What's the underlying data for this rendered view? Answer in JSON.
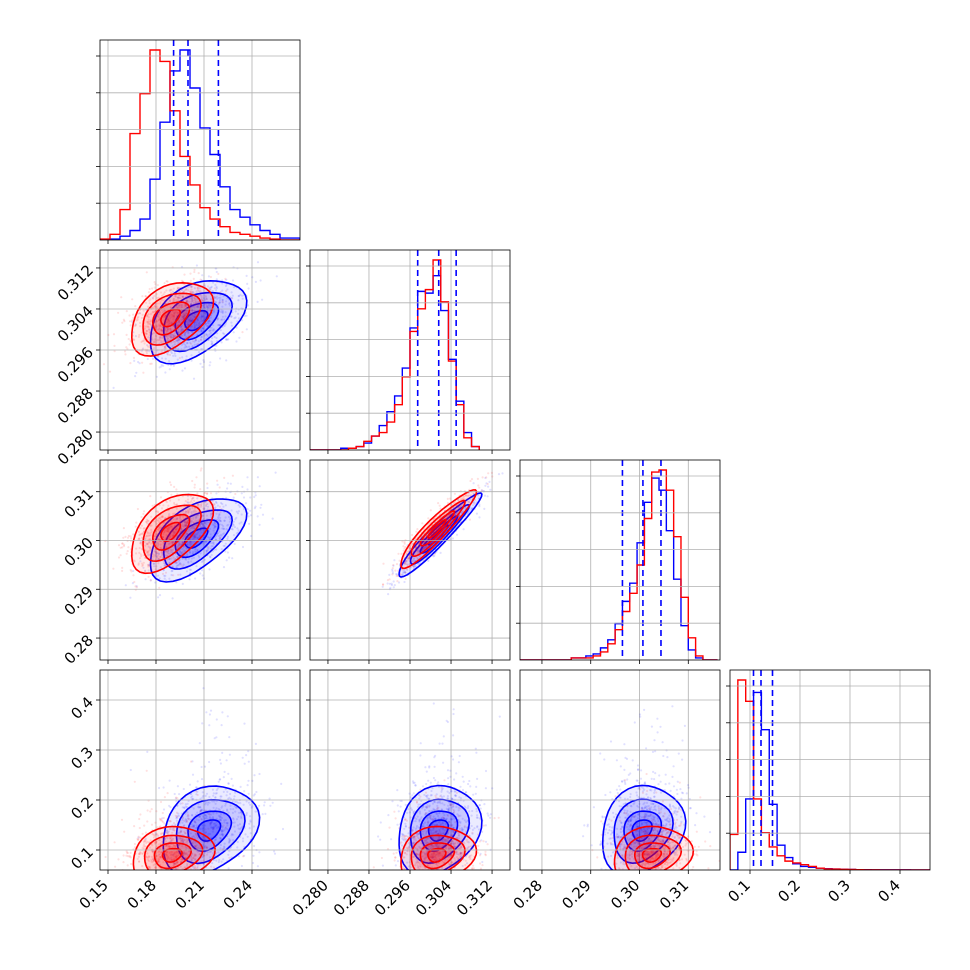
{
  "chart_data": {
    "type": "scatter",
    "layout": "corner",
    "grid": true,
    "colors": {
      "series_a": "#0000ff",
      "series_b": "#ff0000",
      "quantile_lines": "#0000ff"
    },
    "parameters": [
      {
        "range": [
          0.145,
          0.27
        ],
        "ticks": [
          0.15,
          0.18,
          0.21,
          0.24
        ],
        "tick_labels": [
          "0.15",
          "0.18",
          "0.21",
          "0.24"
        ],
        "a": {
          "mean": 0.2,
          "sd": 0.016
        },
        "b": {
          "mean": 0.187,
          "sd": 0.014
        },
        "quantiles": [
          0.191,
          0.2,
          0.219
        ]
      },
      {
        "range": [
          0.2765,
          0.3155
        ],
        "ticks": [
          0.28,
          0.288,
          0.296,
          0.304,
          0.312
        ],
        "tick_labels": [
          "0.280",
          "0.288",
          "0.296",
          "0.304",
          "0.312"
        ],
        "a": {
          "mean": 0.3015,
          "sd": 0.0042
        },
        "b": {
          "mean": 0.3015,
          "sd": 0.0038
        },
        "quantiles": [
          0.2975,
          0.3016,
          0.305
        ]
      },
      {
        "range": [
          0.2755,
          0.3165
        ],
        "ticks": [
          0.28,
          0.29,
          0.3,
          0.31
        ],
        "tick_labels": [
          "0.28",
          "0.29",
          "0.30",
          "0.31"
        ],
        "a": {
          "mean": 0.3015,
          "sd": 0.0045
        },
        "b": {
          "mean": 0.3032,
          "sd": 0.0043
        },
        "quantiles": [
          0.2965,
          0.3007,
          0.3044
        ]
      },
      {
        "range": [
          0.06,
          0.46
        ],
        "ticks": [
          0.1,
          0.2,
          0.3,
          0.4
        ],
        "tick_labels": [
          "0.1",
          "0.2",
          "0.3",
          "0.4"
        ],
        "a": {
          "mean": 0.125,
          "sd": 0.03
        },
        "b": {
          "mean": 0.092,
          "sd": 0.022
        },
        "quantiles": [
          0.107,
          0.122,
          0.145
        ]
      }
    ],
    "series": [
      {
        "color": "#0000ff",
        "histograms": [
          {
            "edges": [
              0.145,
              0.15125,
              0.1575,
              0.16375,
              0.17,
              0.17625,
              0.1825,
              0.18875,
              0.195,
              0.20125,
              0.2075,
              0.21375,
              0.22,
              0.22625,
              0.2325,
              0.23875,
              0.245,
              0.25125,
              0.2575,
              0.26375,
              0.27
            ],
            "counts": [
              0.0,
              0.005,
              0.02,
              0.05,
              0.11,
              0.32,
              0.62,
              0.89,
              1.0,
              0.8,
              0.59,
              0.45,
              0.28,
              0.16,
              0.12,
              0.08,
              0.05,
              0.03,
              0.01,
              0.01
            ]
          },
          {
            "edges": [
              0.2765,
              0.278,
              0.2795,
              0.281,
              0.2825,
              0.284,
              0.2855,
              0.287,
              0.2885,
              0.29,
              0.2915,
              0.293,
              0.2945,
              0.296,
              0.2975,
              0.299,
              0.3005,
              0.302,
              0.3035,
              0.305,
              0.3065,
              0.308,
              0.3095
            ],
            "counts": [
              0.0,
              0.0,
              0.0,
              0.0,
              0.01,
              0.01,
              0.02,
              0.04,
              0.08,
              0.14,
              0.22,
              0.31,
              0.47,
              0.7,
              0.91,
              0.9,
              1.0,
              0.8,
              0.52,
              0.28,
              0.1,
              0.02
            ]
          },
          {
            "edges": [
              0.2755,
              0.277,
              0.2785,
              0.28,
              0.2815,
              0.283,
              0.2845,
              0.286,
              0.2875,
              0.289,
              0.2905,
              0.292,
              0.2935,
              0.295,
              0.2965,
              0.298,
              0.2995,
              0.301,
              0.3025,
              0.304,
              0.3055,
              0.307,
              0.3085,
              0.31,
              0.3115,
              0.313,
              0.3145,
              0.316
            ],
            "counts": [
              0.0,
              0.0,
              0.0,
              0.0,
              0.0,
              0.0,
              0.0,
              0.01,
              0.01,
              0.02,
              0.03,
              0.06,
              0.1,
              0.18,
              0.29,
              0.38,
              0.58,
              0.78,
              0.9,
              0.84,
              0.64,
              0.4,
              0.17,
              0.05,
              0.01,
              0.0,
              0.0
            ]
          },
          {
            "edges": [
              0.06,
              0.0757,
              0.0914,
              0.1071,
              0.1228,
              0.1385,
              0.1542,
              0.1699,
              0.1856,
              0.2013,
              0.217,
              0.2327,
              0.2484,
              0.2641,
              0.2798,
              0.2955,
              0.3112,
              0.3269,
              0.3426,
              0.3583,
              0.374,
              0.3897,
              0.4054,
              0.4211,
              0.4368,
              0.4525,
              0.46
            ],
            "counts": [
              0.0,
              0.1,
              0.4,
              1.0,
              0.79,
              0.37,
              0.14,
              0.07,
              0.035,
              0.02,
              0.015,
              0.01,
              0.007,
              0.005,
              0.004,
              0.003,
              0.002,
              0.002,
              0.001,
              0.001,
              0.001,
              0.001,
              0.001,
              0.0,
              0.0,
              0.0
            ]
          }
        ]
      },
      {
        "color": "#ff0000",
        "histograms": [
          {
            "edges": [
              0.145,
              0.15125,
              0.1575,
              0.16375,
              0.17,
              0.17625,
              0.1825,
              0.18875,
              0.195,
              0.20125,
              0.2075,
              0.21375,
              0.22,
              0.22625,
              0.2325,
              0.23875,
              0.245,
              0.25125,
              0.2575,
              0.26375,
              0.27
            ],
            "counts": [
              0.005,
              0.03,
              0.16,
              0.56,
              0.77,
              1.0,
              0.94,
              0.68,
              0.44,
              0.29,
              0.17,
              0.11,
              0.07,
              0.04,
              0.03,
              0.02,
              0.01,
              0.005,
              0.0,
              0.0
            ]
          },
          {
            "edges": [
              0.2765,
              0.278,
              0.2795,
              0.281,
              0.2825,
              0.284,
              0.2855,
              0.287,
              0.2885,
              0.29,
              0.2915,
              0.293,
              0.2945,
              0.296,
              0.2975,
              0.299,
              0.3005,
              0.302,
              0.3035,
              0.305,
              0.3065,
              0.308,
              0.3095
            ],
            "counts": [
              0.0,
              0.0,
              0.0,
              0.0,
              0.0,
              0.01,
              0.02,
              0.05,
              0.08,
              0.1,
              0.16,
              0.26,
              0.42,
              0.68,
              0.81,
              0.92,
              1.09,
              0.85,
              0.51,
              0.26,
              0.07,
              0.02
            ]
          },
          {
            "edges": [
              0.2755,
              0.277,
              0.2785,
              0.28,
              0.2815,
              0.283,
              0.2845,
              0.286,
              0.2875,
              0.289,
              0.2905,
              0.292,
              0.2935,
              0.295,
              0.2965,
              0.298,
              0.2995,
              0.301,
              0.3025,
              0.304,
              0.3055,
              0.307,
              0.3085,
              0.31,
              0.3115,
              0.313,
              0.3145,
              0.316
            ],
            "counts": [
              0.0,
              0.0,
              0.0,
              0.0,
              0.0,
              0.0,
              0.0,
              0.01,
              0.01,
              0.01,
              0.02,
              0.04,
              0.08,
              0.15,
              0.24,
              0.33,
              0.47,
              0.7,
              0.93,
              0.94,
              0.84,
              0.61,
              0.31,
              0.11,
              0.02,
              0.0,
              0.0
            ]
          },
          {
            "edges": [
              0.06,
              0.0757,
              0.0914,
              0.1071,
              0.1228,
              0.1385,
              0.1542,
              0.1699,
              0.1856,
              0.2013,
              0.217,
              0.2327,
              0.2484,
              0.2641,
              0.2798,
              0.2955,
              0.3112,
              0.3269,
              0.3426,
              0.3583,
              0.374,
              0.3897,
              0.4054,
              0.4211,
              0.4368,
              0.4525,
              0.46
            ],
            "counts": [
              0.2,
              1.07,
              0.95,
              0.4,
              0.21,
              0.13,
              0.08,
              0.05,
              0.04,
              0.03,
              0.02,
              0.01,
              0.006,
              0.005,
              0.004,
              0.003,
              0.002,
              0.001,
              0.001,
              0.0,
              0.0,
              0.0,
              0.0,
              0.0,
              0.0,
              0.0
            ]
          }
        ]
      }
    ],
    "pairs": [
      {
        "row": 1,
        "col": 0,
        "a": {
          "mean": [
            0.205,
            0.3018
          ],
          "cov": [
            [
              0.00025,
              3e-05
            ],
            [
              3e-05,
              1.8e-05
            ]
          ]
        },
        "b": {
          "mean": [
            0.189,
            0.3023
          ],
          "cov": [
            [
              0.00018,
              2.2e-05
            ],
            [
              2.2e-05,
              1.4e-05
            ]
          ]
        }
      },
      {
        "row": 2,
        "col": 0,
        "a": {
          "mean": [
            0.205,
            0.3005
          ],
          "cov": [
            [
              0.00025,
              4e-05
            ],
            [
              4e-05,
              2e-05
            ]
          ]
        },
        "b": {
          "mean": [
            0.189,
            0.3018
          ],
          "cov": [
            [
              0.00018,
              3e-05
            ],
            [
              3e-05,
              1.8e-05
            ]
          ]
        }
      },
      {
        "row": 2,
        "col": 1,
        "a": {
          "mean": [
            0.3015,
            0.301
          ],
          "cov": [
            [
              1.8e-05,
              1.8e-05
            ],
            [
              1.8e-05,
              2e-05
            ]
          ]
        },
        "b": {
          "mean": [
            0.3012,
            0.3023
          ],
          "cov": [
            [
              1.5e-05,
              1.5e-05
            ],
            [
              1.5e-05,
              1.75e-05
            ]
          ]
        }
      },
      {
        "row": 3,
        "col": 0,
        "a": {
          "mean": [
            0.213,
            0.14
          ],
          "cov": [
            [
              0.00025,
              0.0002
            ],
            [
              0.0002,
              0.0022
            ]
          ]
        },
        "b": {
          "mean": [
            0.19,
            0.09
          ],
          "cov": [
            [
              0.00018,
              8e-05
            ],
            [
              8e-05,
              0.0009
            ]
          ]
        }
      },
      {
        "row": 3,
        "col": 1,
        "a": {
          "mean": [
            0.3015,
            0.14
          ],
          "cov": [
            [
              1.8e-05,
              4e-05
            ],
            [
              4e-05,
              0.0022
            ]
          ]
        },
        "b": {
          "mean": [
            0.3012,
            0.09
          ],
          "cov": [
            [
              1.5e-05,
              2e-05
            ],
            [
              2e-05,
              0.0009
            ]
          ]
        }
      },
      {
        "row": 3,
        "col": 2,
        "a": {
          "mean": [
            0.3005,
            0.14
          ],
          "cov": [
            [
              2e-05,
              4e-05
            ],
            [
              4e-05,
              0.0022
            ]
          ]
        },
        "b": {
          "mean": [
            0.3025,
            0.09
          ],
          "cov": [
            [
              1.8e-05,
              2e-05
            ],
            [
              2e-05,
              0.0009
            ]
          ]
        }
      }
    ]
  }
}
